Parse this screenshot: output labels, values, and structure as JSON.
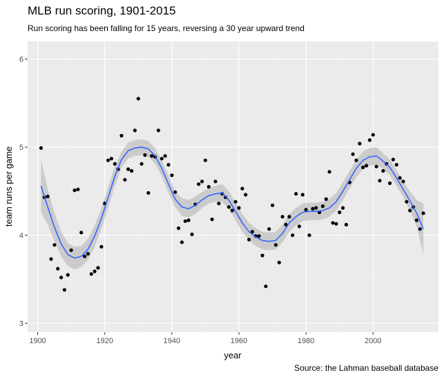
{
  "chart_data": {
    "type": "scatter",
    "title": "MLB run scoring, 1901-2015",
    "subtitle": "Run scoring has been falling for 15 years, reversing a 30 year upward trend",
    "caption": "Source: the Lahman baseball database",
    "xlabel": "year",
    "ylabel": "team runs per game",
    "xlim": [
      1897,
      2019.5
    ],
    "ylim": [
      2.9,
      6.2
    ],
    "xticks": [
      1900,
      1920,
      1940,
      1960,
      1980,
      2000
    ],
    "yticks": [
      3,
      4,
      5,
      6
    ],
    "grid": true,
    "legend": "none",
    "colors": {
      "panel": "#ebebeb",
      "grid_major": "#ffffff",
      "grid_minor": "#f4f4f4",
      "points": "#000000",
      "smooth_line": "#3366ff",
      "ribbon": "#bdbdbd",
      "axis_text": "#4d4d4d"
    },
    "points": [
      [
        1901,
        4.99
      ],
      [
        1902,
        4.43
      ],
      [
        1903,
        4.44
      ],
      [
        1904,
        3.73
      ],
      [
        1905,
        3.89
      ],
      [
        1906,
        3.62
      ],
      [
        1907,
        3.52
      ],
      [
        1908,
        3.38
      ],
      [
        1909,
        3.55
      ],
      [
        1910,
        3.83
      ],
      [
        1911,
        4.51
      ],
      [
        1912,
        4.52
      ],
      [
        1913,
        4.03
      ],
      [
        1914,
        3.76
      ],
      [
        1915,
        3.79
      ],
      [
        1916,
        3.56
      ],
      [
        1917,
        3.59
      ],
      [
        1918,
        3.63
      ],
      [
        1919,
        3.87
      ],
      [
        1920,
        4.36
      ],
      [
        1921,
        4.85
      ],
      [
        1922,
        4.87
      ],
      [
        1923,
        4.81
      ],
      [
        1924,
        4.75
      ],
      [
        1925,
        5.13
      ],
      [
        1926,
        4.63
      ],
      [
        1927,
        4.75
      ],
      [
        1928,
        4.73
      ],
      [
        1929,
        5.19
      ],
      [
        1930,
        5.55
      ],
      [
        1931,
        4.81
      ],
      [
        1932,
        4.91
      ],
      [
        1933,
        4.48
      ],
      [
        1934,
        4.9
      ],
      [
        1935,
        4.89
      ],
      [
        1936,
        5.19
      ],
      [
        1937,
        4.87
      ],
      [
        1938,
        4.9
      ],
      [
        1939,
        4.8
      ],
      [
        1940,
        4.68
      ],
      [
        1941,
        4.49
      ],
      [
        1942,
        4.08
      ],
      [
        1943,
        3.92
      ],
      [
        1944,
        4.16
      ],
      [
        1945,
        4.17
      ],
      [
        1946,
        4.01
      ],
      [
        1947,
        4.35
      ],
      [
        1948,
        4.58
      ],
      [
        1949,
        4.61
      ],
      [
        1950,
        4.85
      ],
      [
        1951,
        4.55
      ],
      [
        1952,
        4.18
      ],
      [
        1953,
        4.61
      ],
      [
        1954,
        4.36
      ],
      [
        1955,
        4.47
      ],
      [
        1956,
        4.43
      ],
      [
        1957,
        4.32
      ],
      [
        1958,
        4.28
      ],
      [
        1959,
        4.38
      ],
      [
        1960,
        4.31
      ],
      [
        1961,
        4.53
      ],
      [
        1962,
        4.46
      ],
      [
        1963,
        3.95
      ],
      [
        1964,
        4.04
      ],
      [
        1965,
        3.99
      ],
      [
        1966,
        3.99
      ],
      [
        1967,
        3.77
      ],
      [
        1968,
        3.42
      ],
      [
        1969,
        4.07
      ],
      [
        1970,
        4.34
      ],
      [
        1971,
        3.89
      ],
      [
        1972,
        3.69
      ],
      [
        1973,
        4.21
      ],
      [
        1974,
        4.12
      ],
      [
        1975,
        4.21
      ],
      [
        1976,
        4.0
      ],
      [
        1977,
        4.47
      ],
      [
        1978,
        4.1
      ],
      [
        1979,
        4.46
      ],
      [
        1980,
        4.29
      ],
      [
        1981,
        4.0
      ],
      [
        1982,
        4.3
      ],
      [
        1983,
        4.31
      ],
      [
        1984,
        4.26
      ],
      [
        1985,
        4.33
      ],
      [
        1986,
        4.41
      ],
      [
        1987,
        4.72
      ],
      [
        1988,
        4.14
      ],
      [
        1989,
        4.13
      ],
      [
        1990,
        4.26
      ],
      [
        1991,
        4.31
      ],
      [
        1992,
        4.12
      ],
      [
        1993,
        4.6
      ],
      [
        1994,
        4.92
      ],
      [
        1995,
        4.85
      ],
      [
        1996,
        5.04
      ],
      [
        1997,
        4.77
      ],
      [
        1998,
        4.79
      ],
      [
        1999,
        5.08
      ],
      [
        2000,
        5.14
      ],
      [
        2001,
        4.78
      ],
      [
        2002,
        4.62
      ],
      [
        2003,
        4.73
      ],
      [
        2004,
        4.81
      ],
      [
        2005,
        4.59
      ],
      [
        2006,
        4.86
      ],
      [
        2007,
        4.8
      ],
      [
        2008,
        4.65
      ],
      [
        2009,
        4.61
      ],
      [
        2010,
        4.38
      ],
      [
        2011,
        4.28
      ],
      [
        2012,
        4.32
      ],
      [
        2013,
        4.17
      ],
      [
        2014,
        4.07
      ],
      [
        2015,
        4.25
      ]
    ],
    "smooth": {
      "x": [
        1901,
        1903,
        1905,
        1907,
        1909,
        1911,
        1913,
        1915,
        1917,
        1919,
        1921,
        1923,
        1925,
        1927,
        1929,
        1931,
        1933,
        1935,
        1937,
        1939,
        1941,
        1943,
        1945,
        1947,
        1949,
        1951,
        1953,
        1955,
        1957,
        1959,
        1961,
        1963,
        1965,
        1967,
        1969,
        1971,
        1973,
        1975,
        1977,
        1979,
        1981,
        1983,
        1985,
        1987,
        1989,
        1991,
        1993,
        1995,
        1997,
        1999,
        2001,
        2003,
        2005,
        2007,
        2009,
        2011,
        2013,
        2015
      ],
      "y": [
        4.56,
        4.32,
        4.09,
        3.9,
        3.78,
        3.74,
        3.76,
        3.84,
        3.99,
        4.19,
        4.43,
        4.67,
        4.86,
        4.96,
        4.99,
        5.0,
        4.98,
        4.9,
        4.76,
        4.58,
        4.41,
        4.32,
        4.3,
        4.34,
        4.4,
        4.45,
        4.47,
        4.48,
        4.4,
        4.27,
        4.14,
        4.04,
        3.98,
        3.94,
        3.93,
        3.94,
        4.02,
        4.14,
        4.21,
        4.26,
        4.27,
        4.27,
        4.28,
        4.31,
        4.38,
        4.5,
        4.63,
        4.76,
        4.85,
        4.89,
        4.9,
        4.84,
        4.77,
        4.65,
        4.52,
        4.39,
        4.25,
        4.07
      ],
      "lower": [
        4.26,
        4.12,
        3.93,
        3.76,
        3.65,
        3.61,
        3.64,
        3.72,
        3.87,
        4.07,
        4.31,
        4.56,
        4.77,
        4.87,
        4.9,
        4.91,
        4.89,
        4.81,
        4.67,
        4.48,
        4.32,
        4.22,
        4.2,
        4.24,
        4.31,
        4.36,
        4.38,
        4.38,
        4.3,
        4.17,
        4.04,
        3.94,
        3.88,
        3.84,
        3.83,
        3.84,
        3.92,
        4.04,
        4.11,
        4.16,
        4.17,
        4.17,
        4.18,
        4.21,
        4.28,
        4.4,
        4.53,
        4.66,
        4.75,
        4.79,
        4.8,
        4.75,
        4.68,
        4.56,
        4.43,
        4.28,
        4.1,
        3.78
      ],
      "upper": [
        4.86,
        4.52,
        4.25,
        4.04,
        3.91,
        3.87,
        3.88,
        3.96,
        4.11,
        4.31,
        4.55,
        4.78,
        4.95,
        5.05,
        5.08,
        5.09,
        5.07,
        4.99,
        4.85,
        4.68,
        4.5,
        4.42,
        4.4,
        4.44,
        4.49,
        4.54,
        4.56,
        4.58,
        4.5,
        4.37,
        4.24,
        4.14,
        4.08,
        4.04,
        4.03,
        4.04,
        4.12,
        4.24,
        4.31,
        4.36,
        4.37,
        4.37,
        4.38,
        4.41,
        4.48,
        4.6,
        4.73,
        4.86,
        4.95,
        4.99,
        5.0,
        4.93,
        4.86,
        4.74,
        4.61,
        4.5,
        4.4,
        4.36
      ]
    }
  }
}
